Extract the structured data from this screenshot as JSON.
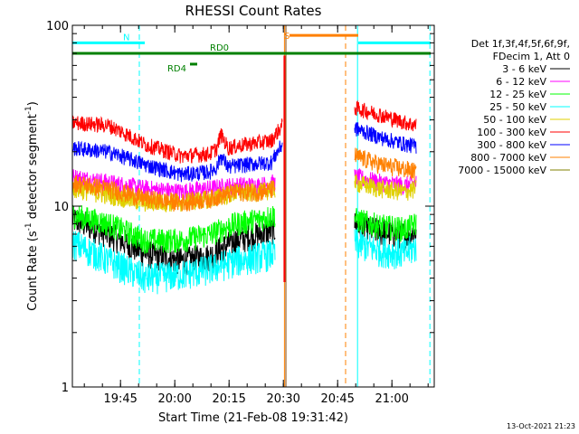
{
  "chart_data": {
    "type": "line",
    "title": "RHESSI Count Rates",
    "xlabel": "Start Time (21-Feb-08 19:31:42)",
    "ylabel_main": "Count Rate (s",
    "ylabel_sup": "-1",
    "ylabel_mid": " detector segment",
    "ylabel_sup2": "-1",
    "ylabel_end": ")",
    "yscale": "log",
    "ylim": [
      1,
      100
    ],
    "xlim_minutes_since_1931": [
      0,
      100
    ],
    "x_ticks": [
      {
        "label": "19:45",
        "minutes": 13.3
      },
      {
        "label": "20:00",
        "minutes": 28.3
      },
      {
        "label": "20:15",
        "minutes": 43.3
      },
      {
        "label": "20:30",
        "minutes": 58.3
      },
      {
        "label": "20:45",
        "minutes": 73.3
      },
      {
        "label": "21:00",
        "minutes": 88.3
      }
    ],
    "y_ticks": [
      {
        "label": "1",
        "value": 1
      },
      {
        "label": "10",
        "value": 10
      },
      {
        "label": "100",
        "value": 100
      }
    ],
    "legend_header": [
      "Det 1f,3f,4f,5f,6f,9f,",
      "FDecim 1, Att 0"
    ],
    "legend_position": "top-right, outside plot",
    "series": [
      {
        "name": "3 - 6 keV",
        "color": "#000000",
        "before": [
          [
            0,
            8.5
          ],
          [
            10,
            7.0
          ],
          [
            20,
            5.5
          ],
          [
            30,
            5.0
          ],
          [
            38,
            5.3
          ],
          [
            45,
            6.5
          ],
          [
            52,
            7.0
          ],
          [
            56,
            7.5
          ]
        ],
        "after": [
          [
            78,
            8.0
          ],
          [
            85,
            7.2
          ],
          [
            92,
            7.0
          ],
          [
            95,
            7.2
          ]
        ]
      },
      {
        "name": "6 - 12 keV",
        "color": "#ff00ff",
        "before": [
          [
            0,
            14.5
          ],
          [
            10,
            13.5
          ],
          [
            20,
            12.5
          ],
          [
            30,
            12.0
          ],
          [
            38,
            12.5
          ],
          [
            45,
            13.0
          ],
          [
            52,
            13.0
          ],
          [
            56,
            13.5
          ]
        ],
        "after": [
          [
            78,
            14.5
          ],
          [
            85,
            13.5
          ],
          [
            92,
            13.0
          ],
          [
            95,
            13.5
          ]
        ]
      },
      {
        "name": "12 - 25 keV",
        "color": "#00ff00",
        "before": [
          [
            0,
            9.0
          ],
          [
            10,
            8.0
          ],
          [
            20,
            6.5
          ],
          [
            30,
            6.5
          ],
          [
            38,
            7.0
          ],
          [
            45,
            8.0
          ],
          [
            52,
            8.5
          ],
          [
            56,
            9.0
          ]
        ],
        "after": [
          [
            78,
            8.5
          ],
          [
            85,
            7.8
          ],
          [
            92,
            7.5
          ],
          [
            95,
            8.0
          ]
        ]
      },
      {
        "name": "25 - 50 keV",
        "color": "#00ffff",
        "before": [
          [
            0,
            6.3
          ],
          [
            10,
            5.0
          ],
          [
            20,
            4.0
          ],
          [
            30,
            4.2
          ],
          [
            38,
            4.5
          ],
          [
            45,
            5.0
          ],
          [
            52,
            5.3
          ],
          [
            56,
            5.5
          ]
        ],
        "after": [
          [
            78,
            6.3
          ],
          [
            85,
            5.7
          ],
          [
            92,
            5.5
          ],
          [
            95,
            6.0
          ]
        ]
      },
      {
        "name": "50 - 100 keV",
        "color": "#e0d000",
        "before": [
          [
            0,
            12.5
          ],
          [
            10,
            11.5
          ],
          [
            20,
            10.5
          ],
          [
            30,
            10.5
          ],
          [
            38,
            11.0
          ],
          [
            45,
            11.8
          ],
          [
            52,
            12.0
          ],
          [
            56,
            12.5
          ]
        ],
        "after": [
          [
            78,
            13.5
          ],
          [
            85,
            12.5
          ],
          [
            92,
            12.0
          ],
          [
            95,
            12.5
          ]
        ]
      },
      {
        "name": "100 - 300 keV",
        "color": "#ff0000",
        "before": [
          [
            0,
            29.0
          ],
          [
            10,
            28.0
          ],
          [
            20,
            22.0
          ],
          [
            30,
            19.0
          ],
          [
            38,
            19.5
          ],
          [
            40,
            21.0
          ],
          [
            41,
            25.0
          ],
          [
            43,
            21.0
          ],
          [
            48,
            22.0
          ],
          [
            55,
            23.0
          ],
          [
            58,
            28.0
          ]
        ],
        "after": [
          [
            78,
            35.0
          ],
          [
            85,
            32.0
          ],
          [
            92,
            29.0
          ],
          [
            95,
            28.0
          ]
        ]
      },
      {
        "name": "300 - 800 keV",
        "color": "#0000ff",
        "before": [
          [
            0,
            21.0
          ],
          [
            10,
            20.0
          ],
          [
            20,
            17.0
          ],
          [
            30,
            15.0
          ],
          [
            38,
            15.5
          ],
          [
            40,
            16.5
          ],
          [
            41,
            19.0
          ],
          [
            43,
            16.5
          ],
          [
            48,
            17.0
          ],
          [
            55,
            17.5
          ],
          [
            58,
            22.0
          ]
        ],
        "after": [
          [
            78,
            27.0
          ],
          [
            85,
            24.0
          ],
          [
            92,
            22.0
          ],
          [
            95,
            21.5
          ]
        ]
      },
      {
        "name": "800 - 7000 keV",
        "color": "#ff8000",
        "before": [
          [
            0,
            13.5
          ],
          [
            10,
            12.5
          ],
          [
            20,
            11.0
          ],
          [
            30,
            10.5
          ],
          [
            38,
            11.0
          ],
          [
            45,
            12.0
          ],
          [
            52,
            12.0
          ],
          [
            56,
            12.5
          ]
        ],
        "after": [
          [
            78,
            19.0
          ],
          [
            85,
            17.0
          ],
          [
            92,
            16.0
          ],
          [
            95,
            15.5
          ]
        ]
      },
      {
        "name": "7000 - 15000 keV",
        "color": "#808000",
        "before": [],
        "after": []
      }
    ],
    "annotations": [
      {
        "label": "N",
        "color": "#00ffff",
        "type": "bar",
        "x_start": 0,
        "x_end": 20,
        "y": 80
      },
      {
        "label": "",
        "color": "#00ffff",
        "type": "bar",
        "x_start": 79,
        "x_end": 99,
        "y": 80
      },
      {
        "label": "S",
        "color": "#ff8000",
        "type": "bar",
        "x_start": 60,
        "x_end": 79,
        "y": 88
      },
      {
        "label": "RD0",
        "color": "#008000",
        "type": "bar",
        "x_start": 0,
        "x_end": 99,
        "y": 70
      },
      {
        "label": "RD4",
        "color": "#008000",
        "type": "bar",
        "x_start": 32.5,
        "x_end": 34.5,
        "y": 61
      }
    ],
    "vertical_lines": [
      {
        "x": 0,
        "color": "#00ffff",
        "style": "solid"
      },
      {
        "x": 18.5,
        "color": "#00ffff",
        "style": "dashed"
      },
      {
        "x": 58.6,
        "color": "#ff8000",
        "style": "solid"
      },
      {
        "x": 59.0,
        "color": "#804000",
        "style": "solid"
      },
      {
        "x": 75.5,
        "color": "#ff8000",
        "style": "dashed"
      },
      {
        "x": 78.8,
        "color": "#00ffff",
        "style": "solid"
      },
      {
        "x": 98.8,
        "color": "#00ffff",
        "style": "dashed"
      }
    ],
    "flare_spike": {
      "x": 58.6,
      "peak": 68,
      "low": 3.8
    }
  },
  "timestamp": "13-Oct-2021 21:23"
}
